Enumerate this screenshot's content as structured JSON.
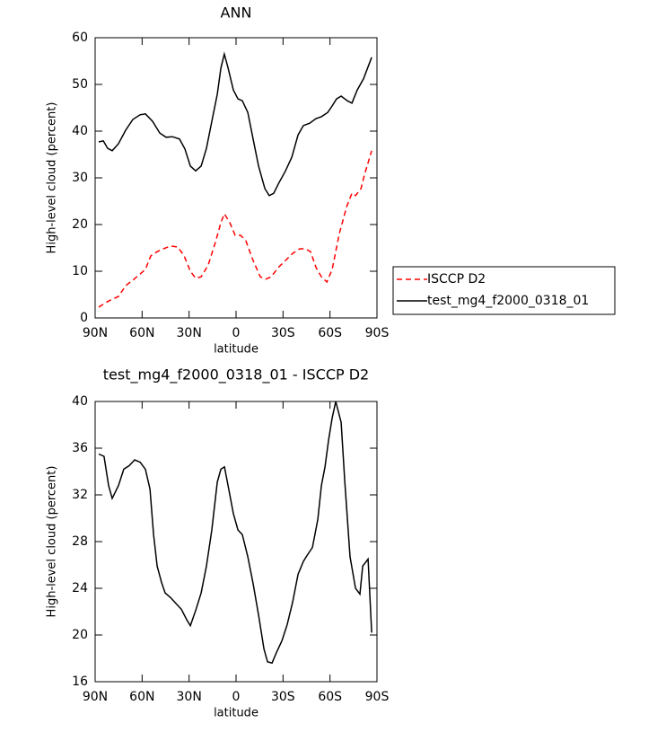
{
  "chart_data": [
    {
      "type": "line",
      "title": "ANN",
      "xlabel": "latitude",
      "ylabel": "High-level cloud (percent)",
      "xlim": [
        90,
        -90
      ],
      "xticks": [
        {
          "value": 90,
          "label": "90N"
        },
        {
          "value": 60,
          "label": "60N"
        },
        {
          "value": 30,
          "label": "30N"
        },
        0,
        {
          "value": -30,
          "label": "30S"
        },
        {
          "value": -60,
          "label": "60S"
        },
        {
          "value": -90,
          "label": "90S"
        }
      ],
      "ylim": [
        0,
        60
      ],
      "yticks": [
        0,
        10,
        20,
        30,
        40,
        50,
        60
      ],
      "legend": "right",
      "series": [
        {
          "name": "ISCCP D2",
          "color": "#ff0000",
          "dashed": true,
          "x": [
            87.7,
            83.1,
            79.1,
            75.1,
            70.5,
            65.9,
            61.3,
            57.9,
            54.4,
            50.4,
            46.4,
            41.8,
            37.2,
            33.2,
            29.2,
            25.8,
            22.3,
            17.8,
            13.2,
            9.7,
            7.5,
            4,
            0.6,
            -2.9,
            -6.3,
            -10.9,
            -15.5,
            -18.9,
            -22.4,
            -27,
            -31.6,
            -36.1,
            -40.7,
            -44.2,
            -47.6,
            -51.1,
            -54.5,
            -58,
            -61.4,
            -66,
            -70.6,
            -74,
            -76.3,
            -79.8,
            -82,
            -86.6
          ],
          "values": [
            2.3,
            3.3,
            4,
            4.6,
            6.9,
            8.1,
            9.4,
            10.4,
            13.3,
            14.2,
            14.8,
            15.4,
            15.2,
            13.3,
            10,
            8.5,
            8.8,
            11.3,
            16.2,
            20.4,
            22.3,
            20.4,
            17.7,
            17.7,
            16.5,
            12.3,
            8.8,
            8.3,
            8.8,
            10.8,
            12.3,
            13.8,
            14.8,
            14.8,
            14.2,
            10.8,
            8.8,
            7.7,
            10.4,
            18.1,
            23.8,
            26.7,
            26.2,
            27.7,
            30.6,
            35.8
          ]
        },
        {
          "name": "test_mg4_f2000_0318_01",
          "color": "#000000",
          "dashed": false,
          "x": [
            87.7,
            84.8,
            82,
            79.1,
            75.1,
            70.5,
            65.9,
            61.3,
            57.9,
            53.3,
            48.7,
            44.7,
            40.7,
            36.1,
            32.7,
            29.2,
            25.8,
            22.3,
            18.9,
            15.5,
            12,
            9.7,
            7.5,
            5.2,
            1.7,
            -1.2,
            -4,
            -7.5,
            -10.9,
            -14.4,
            -18.4,
            -21.2,
            -24.1,
            -27,
            -31.6,
            -35.6,
            -39.6,
            -43,
            -47,
            -51.1,
            -54.5,
            -58.5,
            -61.4,
            -64.2,
            -67.1,
            -71.1,
            -74,
            -77.4,
            -81.4,
            -86.6
          ],
          "values": [
            37.7,
            37.9,
            36.3,
            35.8,
            37.3,
            40.2,
            42.5,
            43.5,
            43.7,
            42.1,
            39.6,
            38.7,
            38.8,
            38.3,
            36.2,
            32.5,
            31.5,
            32.5,
            36.3,
            42.1,
            47.9,
            53.5,
            56.5,
            53.7,
            48.8,
            46.9,
            46.5,
            44,
            38.3,
            32.5,
            27.7,
            26.2,
            26.7,
            28.7,
            31.5,
            34.4,
            39.2,
            41.2,
            41.7,
            42.7,
            43.1,
            44,
            45.4,
            46.9,
            47.5,
            46.5,
            46,
            48.8,
            51.2,
            55.8
          ]
        }
      ]
    },
    {
      "type": "line",
      "title": "test_mg4_f2000_0318_01 - ISCCP D2",
      "xlabel": "latitude",
      "ylabel": "High-level cloud (percent)",
      "xlim": [
        90,
        -90
      ],
      "xticks": [
        {
          "value": 90,
          "label": "90N"
        },
        {
          "value": 60,
          "label": "60N"
        },
        {
          "value": 30,
          "label": "30N"
        },
        0,
        {
          "value": -30,
          "label": "30S"
        },
        {
          "value": -60,
          "label": "60S"
        },
        {
          "value": -90,
          "label": "90S"
        }
      ],
      "ylim": [
        16,
        40
      ],
      "yticks": [
        16,
        20,
        24,
        28,
        32,
        36,
        40
      ],
      "series": [
        {
          "color": "#000000",
          "dashed": false,
          "x": [
            87.7,
            84.3,
            81.4,
            79.1,
            75.1,
            71.7,
            68.3,
            64.8,
            61.3,
            57.9,
            55,
            52.7,
            50.4,
            47.6,
            45.3,
            41.8,
            38.4,
            34.9,
            31.5,
            29.2,
            25.8,
            22.3,
            18.9,
            15.5,
            12,
            9.7,
            7.4,
            5.1,
            1.7,
            -1.2,
            -4,
            -7.5,
            -10.9,
            -14.4,
            -17.8,
            -20.1,
            -23,
            -25.8,
            -29.3,
            -32.7,
            -36.1,
            -39.6,
            -43,
            -45.3,
            -48.8,
            -52.2,
            -54.5,
            -56.8,
            -59.1,
            -61.4,
            -63.7,
            -67.1,
            -69.4,
            -72.8,
            -76.3,
            -79.1,
            -80.9,
            -84.3,
            -86.6
          ],
          "values": [
            35.5,
            35.3,
            32.8,
            31.7,
            32.8,
            34.2,
            34.5,
            35,
            34.8,
            34.2,
            32.5,
            28.6,
            25.9,
            24.5,
            23.6,
            23.2,
            22.7,
            22.2,
            21.3,
            20.8,
            22.1,
            23.6,
            25.9,
            29,
            33.1,
            34.2,
            34.4,
            32.8,
            30.4,
            29,
            28.6,
            26.7,
            24.4,
            21.7,
            18.8,
            17.7,
            17.6,
            18.5,
            19.5,
            20.9,
            22.8,
            25.2,
            26.3,
            26.8,
            27.5,
            29.9,
            32.8,
            34.4,
            36.7,
            38.6,
            40,
            38.2,
            33.2,
            26.7,
            24,
            23.5,
            25.9,
            26.5,
            20.2
          ]
        }
      ]
    }
  ]
}
